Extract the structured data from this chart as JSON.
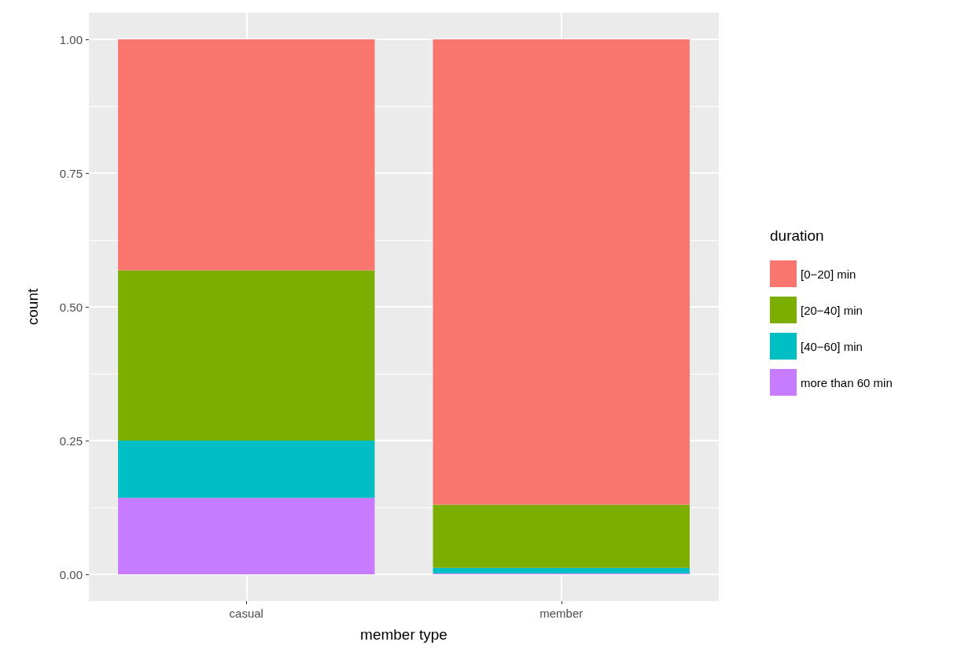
{
  "chart_data": {
    "type": "bar",
    "stacked": true,
    "xlabel": "member type",
    "ylabel": "count",
    "legend_title": "duration",
    "legend": "right",
    "grid": true,
    "categories": [
      "casual",
      "member"
    ],
    "series": [
      {
        "name": "more than 60 min",
        "color": "#c77cff",
        "values": [
          0.143,
          0.002
        ]
      },
      {
        "name": "[40−60] min",
        "color": "#00bfc4",
        "values": [
          0.107,
          0.01
        ]
      },
      {
        "name": "[20−40] min",
        "color": "#7cae00",
        "values": [
          0.318,
          0.118
        ]
      },
      {
        "name": "[0−20] min",
        "color": "#f8766d",
        "values": [
          0.432,
          0.87
        ]
      }
    ],
    "ylim": [
      -0.05,
      1.05
    ],
    "yticks": [
      {
        "value": 0,
        "label": "0.00"
      },
      {
        "value": 0.25,
        "label": "0.25"
      },
      {
        "value": 0.5,
        "label": "0.50"
      },
      {
        "value": 0.75,
        "label": "0.75"
      },
      {
        "value": 1,
        "label": "1.00"
      }
    ]
  }
}
